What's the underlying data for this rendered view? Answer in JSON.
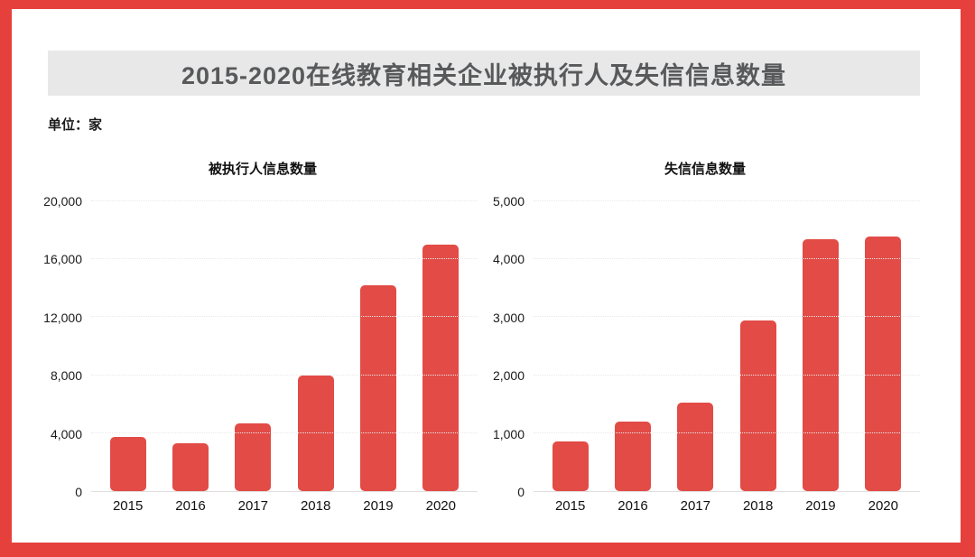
{
  "style": {
    "frame_border_color": "#e6403d",
    "banner_background": "#e8e8e8",
    "banner_title_color": "#58595b",
    "bar_color": "#e24b46"
  },
  "header": {
    "title": "2015-2020在线教育相关企业被执行人及失信信息数量"
  },
  "unit_label": "单位：家",
  "chart_data": [
    {
      "type": "bar",
      "title": "被执行人信息数量",
      "categories": [
        "2015",
        "2016",
        "2017",
        "2018",
        "2019",
        "2020"
      ],
      "values": [
        3750,
        3300,
        4650,
        8000,
        14200,
        17000
      ],
      "xlabel": "",
      "ylabel": "",
      "ylim": [
        0,
        20000
      ],
      "yticks": [
        0,
        4000,
        8000,
        12000,
        16000,
        20000
      ],
      "ytick_labels": [
        "0",
        "4,000",
        "8,000",
        "12,000",
        "16,000",
        "20,000"
      ],
      "grid": "horizontal",
      "legend": "none",
      "bar_color": "#e24b46"
    },
    {
      "type": "bar",
      "title": "失信信息数量",
      "categories": [
        "2015",
        "2016",
        "2017",
        "2018",
        "2019",
        "2020"
      ],
      "values": [
        850,
        1200,
        1520,
        2950,
        4350,
        4400
      ],
      "xlabel": "",
      "ylabel": "",
      "ylim": [
        0,
        5000
      ],
      "yticks": [
        0,
        1000,
        2000,
        3000,
        4000,
        5000
      ],
      "ytick_labels": [
        "0",
        "1,000",
        "2,000",
        "3,000",
        "4,000",
        "5,000"
      ],
      "grid": "horizontal",
      "legend": "none",
      "bar_color": "#e24b46"
    }
  ]
}
